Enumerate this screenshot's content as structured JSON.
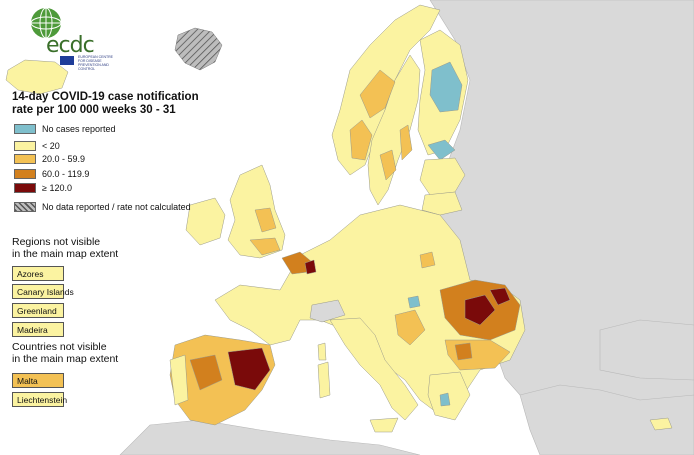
{
  "logo": {
    "name": "ecdc",
    "subtitle": "EUROPEAN CENTRE FOR DISEASE PREVENTION AND CONTROL"
  },
  "legend": {
    "title_line1": "14-day COVID-19 case notification",
    "title_line2": "rate per 100 000 weeks 30 - 31",
    "items": [
      {
        "label": "No cases reported",
        "color": "#7fbfcc"
      },
      {
        "label": "< 20",
        "color": "#fbf3a1"
      },
      {
        "label": "20.0 - 59.9",
        "color": "#f3c154"
      },
      {
        "label": "60.0 - 119.9",
        "color": "#d2801e"
      },
      {
        "label": "≥ 120.0",
        "color": "#7a0a0a"
      },
      {
        "label": "No data reported / rate not calculated",
        "color": "hatch"
      }
    ]
  },
  "regions_not_visible": {
    "title_line1": "Regions not visible",
    "title_line2": "in the main map extent",
    "items": [
      {
        "label": "Azores",
        "color": "#fbf3a1"
      },
      {
        "label": "Canary Islands",
        "color": "#fbf3a1"
      },
      {
        "label": "Greenland",
        "color": "#fbf3a1"
      },
      {
        "label": "Madeira",
        "color": "#fbf3a1"
      }
    ]
  },
  "countries_not_visible": {
    "title_line1": "Countries not visible",
    "title_line2": "in the main map extent",
    "items": [
      {
        "label": "Malta",
        "color": "#f3c154"
      },
      {
        "label": "Liechtenstein",
        "color": "#fbf3a1"
      }
    ]
  },
  "colors": {
    "sea": "#ffffff",
    "non_eu_land": "#d9d9d9",
    "border": "#9a9a8a"
  }
}
